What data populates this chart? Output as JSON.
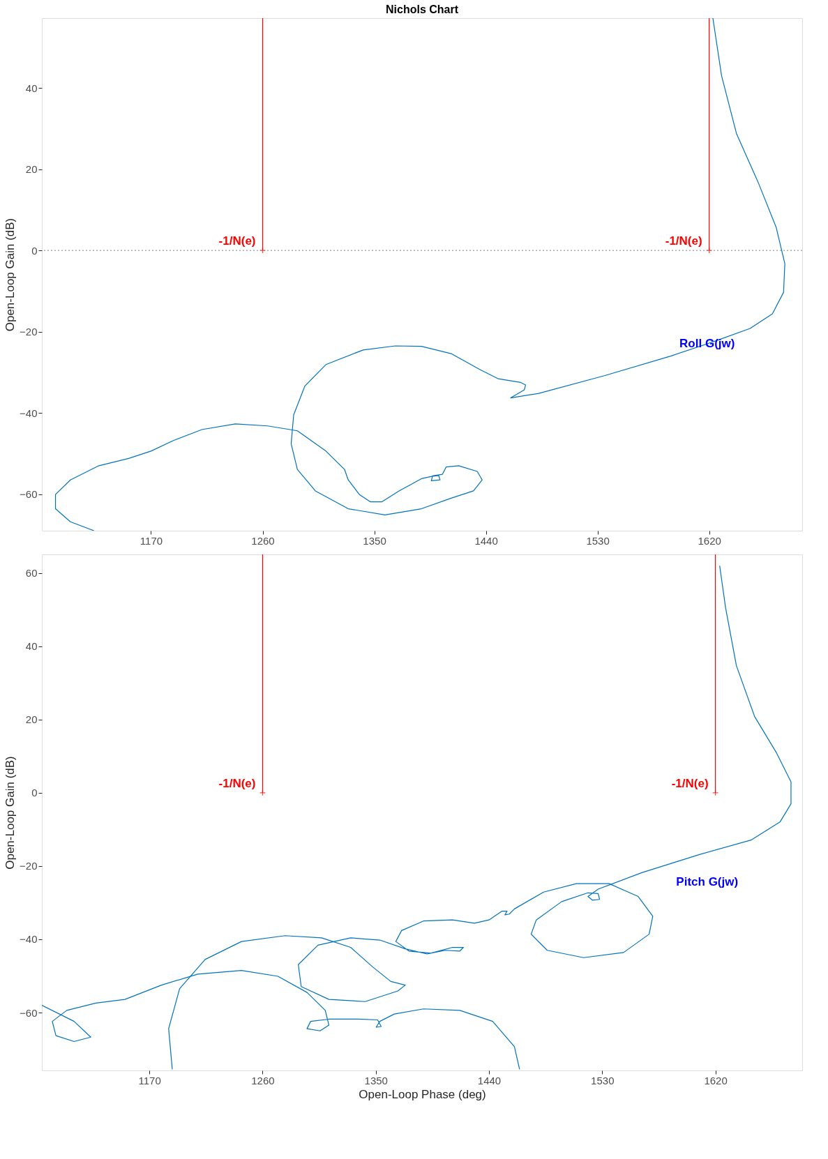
{
  "chart_data": [
    {
      "type": "line",
      "title": "Nichols Chart",
      "ylabel": "Open-Loop Gain (dB)",
      "xlim": [
        1082,
        1695
      ],
      "ylim": [
        -69,
        57.2
      ],
      "xticks": [
        1170,
        1260,
        1350,
        1440,
        1530,
        1620
      ],
      "yticks": [
        -60,
        -40,
        -20,
        0,
        20,
        40
      ],
      "grid": false,
      "series": [
        {
          "name": "Roll G(jw)",
          "color": "#0072bd",
          "x": [
            1623,
            1630,
            1642,
            1660,
            1674,
            1681,
            1680,
            1671,
            1653,
            1624,
            1589,
            1536,
            1482.6,
            1460,
            1471,
            1472,
            1468,
            1450,
            1435,
            1412,
            1388,
            1367,
            1341,
            1311,
            1294,
            1285,
            1283,
            1288,
            1302.5,
            1329,
            1358.6,
            1388,
            1412,
            1430,
            1437,
            1433,
            1418,
            1408,
            1405,
            1397,
            1396,
            1403,
            1402,
            1397,
            1388,
            1370,
            1356,
            1347,
            1338,
            1329,
            1326,
            1311,
            1288,
            1264,
            1238,
            1211,
            1188,
            1170,
            1152,
            1128,
            1105,
            1093,
            1093,
            1105,
            1124
          ],
          "values": [
            57.2,
            43,
            28.8,
            16.4,
            5.7,
            -3.2,
            -10.3,
            -15.6,
            -19.2,
            -22.4,
            -26,
            -30.8,
            -35.2,
            -36.3,
            -34.3,
            -33.1,
            -32.5,
            -31.6,
            -29.3,
            -25.4,
            -23.6,
            -23.5,
            -24.5,
            -28.1,
            -33.4,
            -40.5,
            -47.6,
            -53.9,
            -59.2,
            -63.6,
            -65.1,
            -63.6,
            -61,
            -59.2,
            -56.5,
            -54.4,
            -53,
            -53.3,
            -55.1,
            -55.5,
            -56.7,
            -56.5,
            -55.4,
            -55.6,
            -56.2,
            -59.2,
            -61.9,
            -61.9,
            -60.1,
            -56.5,
            -53.9,
            -49.4,
            -44.4,
            -43.2,
            -42.7,
            -44.1,
            -46.8,
            -49.4,
            -51.2,
            -53,
            -56.5,
            -60.1,
            -63.6,
            -66.8,
            -69
          ]
        },
        {
          "name": "-1/N(e)",
          "color": "#ff0000",
          "x": [
            1260,
            1260
          ],
          "values": [
            0,
            57.2
          ]
        },
        {
          "name": "-1/N(e)",
          "color": "#ff0000",
          "x": [
            1620,
            1620
          ],
          "values": [
            0,
            57.2
          ]
        },
        {
          "type": "scatter",
          "marker": "cross",
          "color": "#ff0000",
          "x": [
            1260,
            1620
          ],
          "values": [
            0,
            0
          ]
        }
      ],
      "ref_lines": [
        {
          "axis": "y",
          "value": 0,
          "color": "#808080",
          "line_style": "dotted"
        }
      ]
    },
    {
      "type": "line",
      "xlabel": "Open-Loop Phase (deg)",
      "ylabel": "Open-Loop Gain (dB)",
      "xlim": [
        1084.5,
        1689
      ],
      "ylim": [
        -75.8,
        65.1
      ],
      "xticks": [
        1170,
        1260,
        1350,
        1440,
        1530,
        1620
      ],
      "yticks": [
        -60,
        -40,
        -20,
        0,
        20,
        40,
        60
      ],
      "grid": false,
      "series": [
        {
          "name": "Pitch G(jw)",
          "color": "#0072bd",
          "x": [
            1623.4,
            1628.1,
            1636.7,
            1651.2,
            1668.6,
            1680.1,
            1680.1,
            1671.5,
            1648.3,
            1607.8,
            1561.5,
            1526.8,
            1518.7,
            1522.2,
            1527.9,
            1526.8,
            1518.7,
            1497.8,
            1477.6,
            1473.5,
            1486.3,
            1515.2,
            1547,
            1567.3,
            1570.2,
            1558.6,
            1535.5,
            1509.4,
            1483.4,
            1460.2,
            1456.2,
            1452.7,
            1454.4,
            1450.4,
            1440,
            1428.4,
            1411,
            1387.9,
            1370.5,
            1365.9,
            1376.3,
            1393.7,
            1411,
            1419.7,
            1416.8,
            1405.3,
            1390.8,
            1373.4,
            1353.2,
            1330,
            1304,
            1288.4,
            1290.7,
            1312.7,
            1341.6,
            1367.6,
            1373.4,
            1361.9,
            1347.4,
            1330,
            1306.9,
            1277.9,
            1243.2,
            1214.3,
            1194,
            1185.3,
            1188.2,
            null,
            1464.3,
            1460.2,
            1442.9,
            1416.8,
            1387.9,
            1364.7,
            1353.2,
            1350.3,
            1354.3,
            1351.4,
            1335.8,
            1312.7,
            1298.2,
            1295.3,
            1305.7,
            1312.7,
            1309.8,
            1295.3,
            1272.2,
            1243.2,
            1208.5,
            1179.6,
            1150.6,
            1127.5,
            1104.3,
            1092.8,
            1095.7,
            1110.1,
            1123.4,
            1110.1,
            1084.5
          ],
          "values": [
            62,
            50.5,
            34.7,
            20.8,
            10.9,
            3,
            -3,
            -7.9,
            -12.9,
            -16.8,
            -21.8,
            -26.3,
            -28.3,
            -29.3,
            -29.1,
            -27.5,
            -27.3,
            -29.7,
            -34.7,
            -38.6,
            -43,
            -45,
            -43.6,
            -38.6,
            -33.7,
            -28.3,
            -24.8,
            -24.8,
            -27.1,
            -31.7,
            -33.1,
            -33.3,
            -32.3,
            -32.3,
            -34.7,
            -35.6,
            -34.7,
            -35,
            -37.6,
            -40.6,
            -43.2,
            -43.8,
            -42.2,
            -42.2,
            -43.2,
            -43,
            -44,
            -42.6,
            -40.2,
            -39.6,
            -41.6,
            -46.9,
            -52.9,
            -56.4,
            -57,
            -54.1,
            -52.5,
            -51.5,
            -47.5,
            -42.2,
            -39.6,
            -39,
            -40.6,
            -45.5,
            -53.5,
            -64.4,
            -75.5,
            null,
            -75.5,
            -69.3,
            -62.4,
            -59.4,
            -59,
            -60.4,
            -62.4,
            -64,
            -63.8,
            -62,
            -61.8,
            -61.8,
            -62.4,
            -64.4,
            -65,
            -63.4,
            -59.4,
            -54.5,
            -50.1,
            -48.5,
            -49.5,
            -52.5,
            -56.4,
            -57.4,
            -59.4,
            -62.4,
            -66.3,
            -67.9,
            -66.7,
            -62.4,
            -58
          ]
        },
        {
          "name": "-1/N(e)",
          "color": "#ff0000",
          "x": [
            1260,
            1260
          ],
          "values": [
            0,
            65.1
          ]
        },
        {
          "name": "-1/N(e)",
          "color": "#ff0000",
          "x": [
            1620,
            1620
          ],
          "values": [
            0,
            65.1
          ]
        },
        {
          "type": "scatter",
          "marker": "cross",
          "color": "#ff0000",
          "x": [
            1260,
            1620
          ],
          "values": [
            0,
            0
          ]
        }
      ]
    }
  ]
}
